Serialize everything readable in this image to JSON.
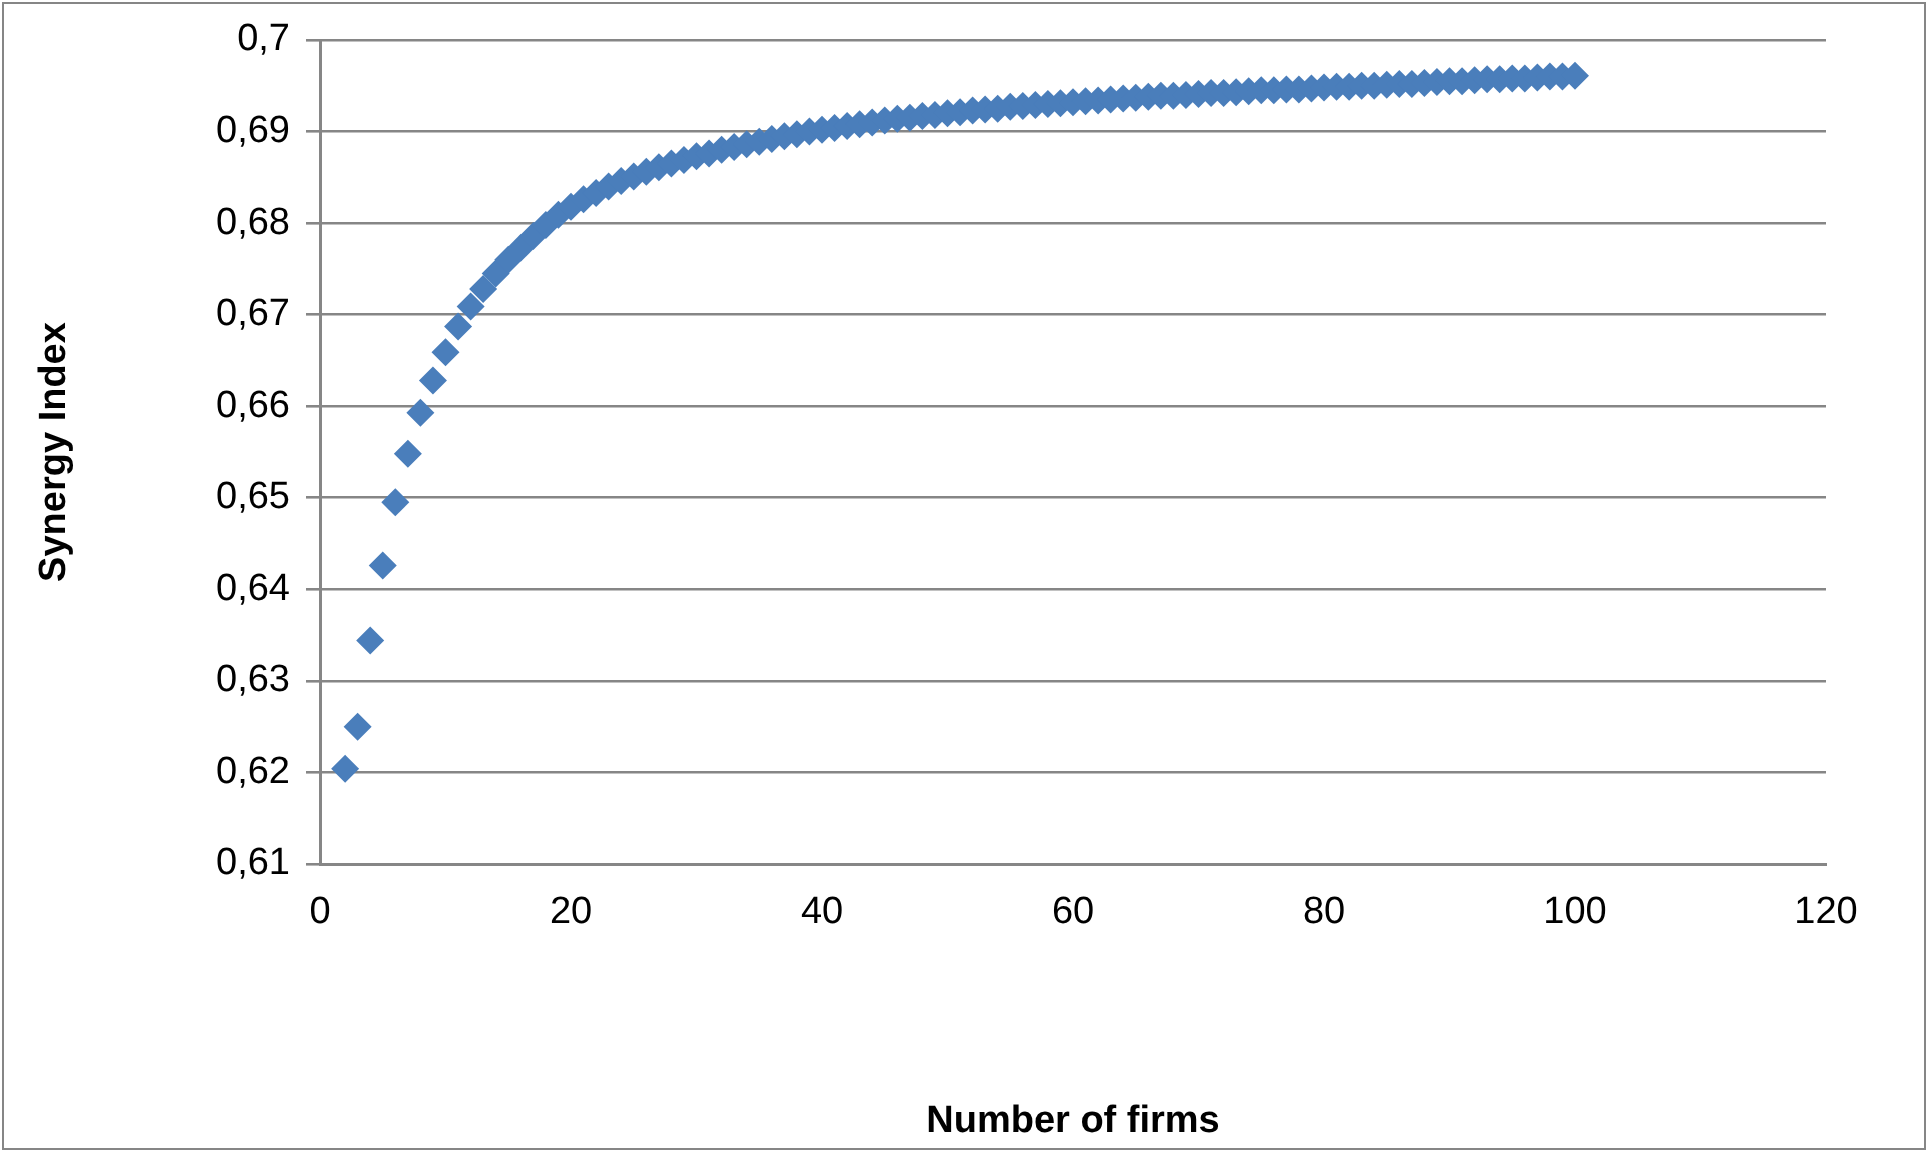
{
  "chart_data": {
    "type": "scatter",
    "xlabel": "Number of firms",
    "ylabel": "Synergy Index",
    "x": [
      2,
      3,
      4,
      5,
      6,
      7,
      8,
      9,
      10,
      11,
      12,
      13,
      14,
      15,
      16,
      17,
      18,
      19,
      20,
      21,
      22,
      23,
      24,
      25,
      26,
      27,
      28,
      29,
      30,
      31,
      32,
      33,
      34,
      35,
      36,
      37,
      38,
      39,
      40,
      41,
      42,
      43,
      44,
      45,
      46,
      47,
      48,
      49,
      50,
      51,
      52,
      53,
      54,
      55,
      56,
      57,
      58,
      59,
      60,
      61,
      62,
      63,
      64,
      65,
      66,
      67,
      68,
      69,
      70,
      71,
      72,
      73,
      74,
      75,
      76,
      77,
      78,
      79,
      80,
      81,
      82,
      83,
      84,
      85,
      86,
      87,
      88,
      89,
      90,
      91,
      92,
      93,
      94,
      95,
      96,
      97,
      98,
      99,
      100
    ],
    "series": [
      {
        "color": "#4a7ebb",
        "values": [
          0.6204,
          0.625,
          0.6344,
          0.6426,
          0.6495,
          0.6548,
          0.6593,
          0.6628,
          0.6659,
          0.6687,
          0.6709,
          0.6728,
          0.6745,
          0.676,
          0.6773,
          0.6786,
          0.6798,
          0.6809,
          0.6818,
          0.6826,
          0.6833,
          0.684,
          0.6846,
          0.6851,
          0.6856,
          0.6861,
          0.6865,
          0.6869,
          0.6873,
          0.6876,
          0.688,
          0.6883,
          0.6886,
          0.6889,
          0.6892,
          0.6895,
          0.6897,
          0.69,
          0.6902,
          0.6904,
          0.6906,
          0.6908,
          0.691,
          0.6912,
          0.6914,
          0.6915,
          0.6917,
          0.6918,
          0.692,
          0.6921,
          0.6923,
          0.6924,
          0.6925,
          0.6927,
          0.6928,
          0.6929,
          0.693,
          0.6931,
          0.6932,
          0.6933,
          0.6934,
          0.6935,
          0.6936,
          0.6937,
          0.6938,
          0.6939,
          0.6939,
          0.694,
          0.6941,
          0.6942,
          0.6942,
          0.6943,
          0.6944,
          0.6945,
          0.6945,
          0.6946,
          0.6946,
          0.6947,
          0.6948,
          0.6949,
          0.6949,
          0.695,
          0.695,
          0.6951,
          0.6952,
          0.6952,
          0.6953,
          0.6954,
          0.6955,
          0.6955,
          0.6956,
          0.6957,
          0.6957,
          0.6958,
          0.6958,
          0.6959,
          0.696,
          0.696,
          0.6961
        ]
      }
    ],
    "xlim": [
      0,
      120
    ],
    "xticks": [
      0,
      20,
      40,
      60,
      80,
      100,
      120
    ],
    "ylim": [
      0.61,
      0.7
    ],
    "yticks": [
      {
        "value": 0.61,
        "label": "0,61"
      },
      {
        "value": 0.62,
        "label": "0,62"
      },
      {
        "value": 0.63,
        "label": "0,63"
      },
      {
        "value": 0.64,
        "label": "0,64"
      },
      {
        "value": 0.65,
        "label": "0,65"
      },
      {
        "value": 0.66,
        "label": "0,66"
      },
      {
        "value": 0.67,
        "label": "0,67"
      },
      {
        "value": 0.68,
        "label": "0,68"
      },
      {
        "value": 0.69,
        "label": "0,69"
      },
      {
        "value": 0.7,
        "label": "0,7"
      }
    ],
    "grid": "y",
    "legend": false,
    "marker": "diamond"
  }
}
